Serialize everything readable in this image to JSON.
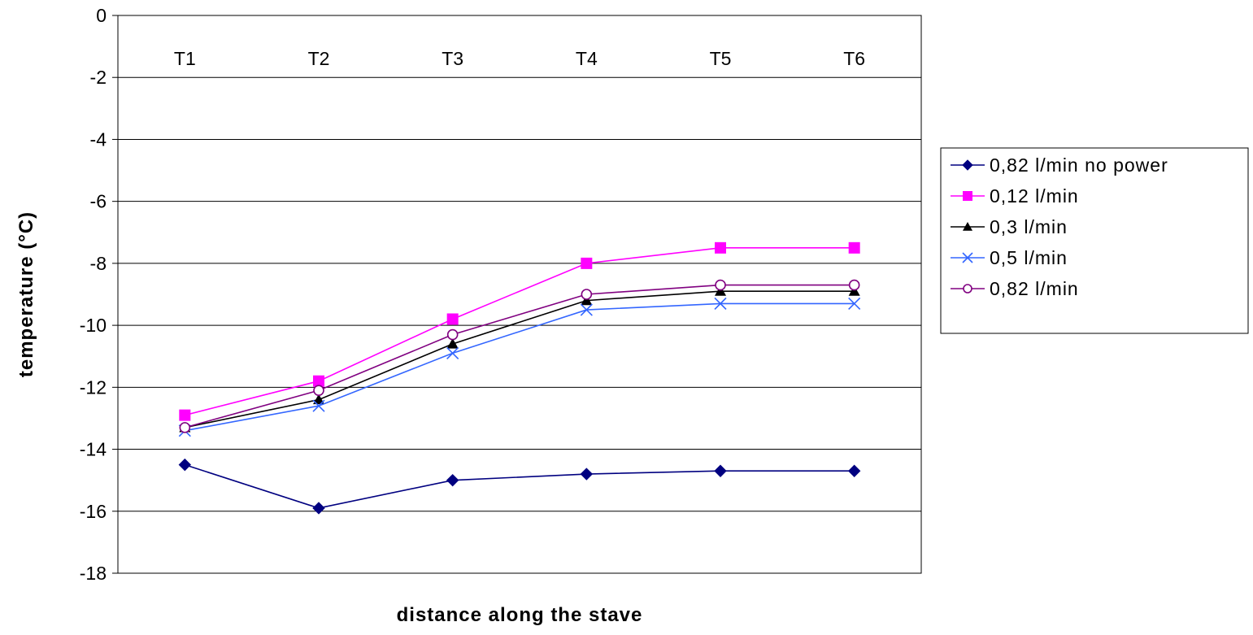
{
  "chart_data": {
    "type": "line",
    "title": "",
    "xlabel": "distance along the stave",
    "ylabel": "temperature (°C)",
    "categories": [
      "T1",
      "T2",
      "T3",
      "T4",
      "T5",
      "T6"
    ],
    "ylim": [
      -18,
      0
    ],
    "yticks": [
      0,
      -2,
      -4,
      -6,
      -8,
      -10,
      -12,
      -14,
      -16,
      -18
    ],
    "grid": true,
    "legend_position": "right",
    "series": [
      {
        "name": "0,82 l/min no power",
        "color": "#000080",
        "marker": "diamond",
        "values": [
          -14.5,
          -15.9,
          -15.0,
          -14.8,
          -14.7,
          -14.7
        ]
      },
      {
        "name": "0,12 l/min",
        "color": "#ff00ff",
        "marker": "square",
        "values": [
          -12.9,
          -11.8,
          -9.8,
          -8.0,
          -7.5,
          -7.5
        ]
      },
      {
        "name": "0,3 l/min",
        "color": "#000000",
        "marker": "triangle",
        "values": [
          -13.3,
          -12.4,
          -10.6,
          -9.2,
          -8.9,
          -8.9
        ]
      },
      {
        "name": "0,5 l/min",
        "color": "#3366ff",
        "marker": "x",
        "values": [
          -13.4,
          -12.6,
          -10.9,
          -9.5,
          -9.3,
          -9.3
        ]
      },
      {
        "name": "0,82 l/min",
        "color": "#800080",
        "marker": "circle",
        "values": [
          -13.3,
          -12.1,
          -10.3,
          -9.0,
          -8.7,
          -8.7
        ]
      }
    ]
  }
}
